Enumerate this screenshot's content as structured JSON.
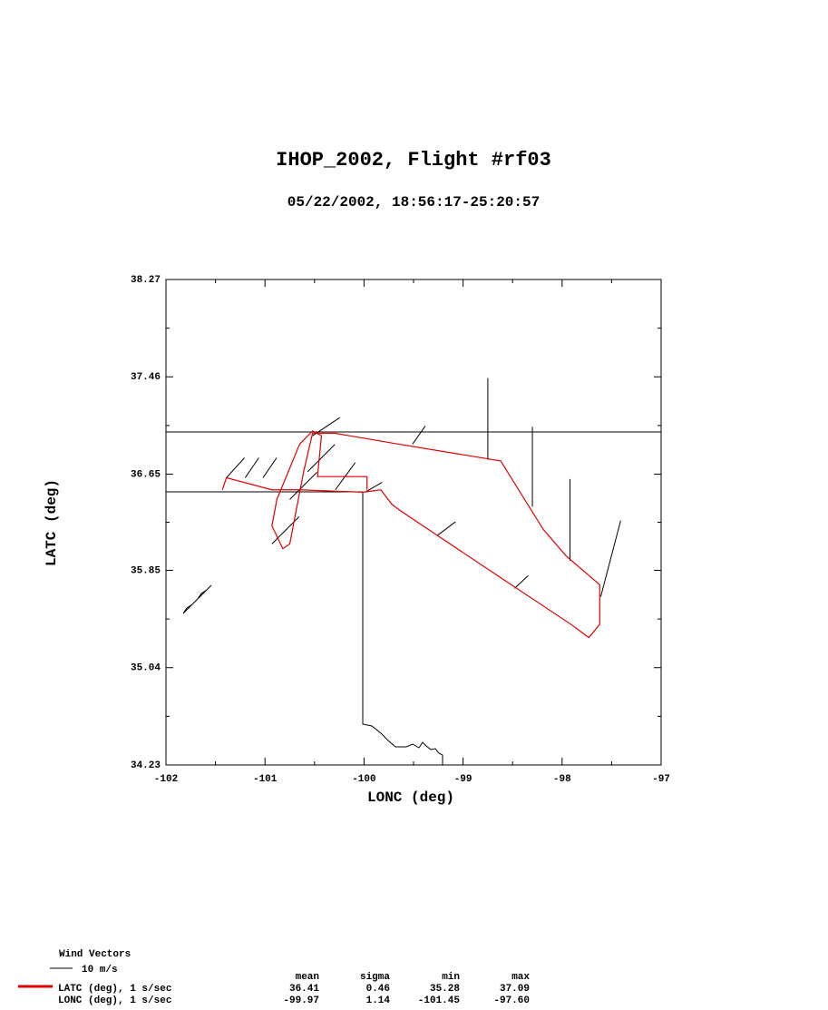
{
  "chart_data": {
    "type": "track",
    "title": "IHOP_2002, Flight #rf03",
    "subtitle": "05/22/2002, 18:56:17-25:20:57",
    "x_label": "LONC (deg)",
    "y_label": "LATC (deg)",
    "xlim": [
      -102,
      -97
    ],
    "xticks": [
      -102,
      -101,
      -100,
      -99,
      -98,
      -97
    ],
    "ylim": [
      34.23,
      38.27
    ],
    "yticks": [
      34.23,
      35.04,
      35.85,
      36.65,
      37.46,
      38.27
    ],
    "series": [
      {
        "color": "#e00000",
        "x": [
          -101.43,
          -101.39,
          -100.93,
          -100.65,
          -100.01,
          -99.83,
          -99.72,
          -99.64,
          -98.75,
          -97.91,
          -97.73,
          -97.62,
          -97.62,
          -97.96,
          -98.19,
          -98.62,
          -99.65,
          -100.29,
          -100.52,
          -100.61,
          -100.75,
          -100.82,
          -100.93,
          -100.88,
          -100.65,
          -100.52,
          -100.43,
          -100.47,
          -99.97,
          -99.97
        ],
        "values": [
          36.52,
          36.62,
          36.52,
          36.52,
          36.5,
          36.52,
          36.4,
          36.35,
          35.86,
          35.4,
          35.29,
          35.4,
          35.73,
          35.97,
          36.19,
          36.76,
          36.9,
          36.99,
          36.99,
          36.67,
          36.07,
          36.03,
          36.22,
          36.44,
          36.9,
          37.01,
          36.97,
          36.63,
          36.63,
          36.52
        ]
      }
    ],
    "wind_vectors": {
      "lon": [
        -98.75,
        -98.3,
        -97.92,
        -97.61,
        -99.51,
        -99.26,
        -98.48,
        -101.2,
        -101.39,
        -101.02,
        -100.29,
        -99.99,
        -100.52,
        -100.93,
        -100.75,
        -100.57
      ],
      "lat": [
        36.77,
        36.38,
        35.93,
        35.63,
        36.9,
        36.14,
        35.7,
        36.62,
        36.62,
        36.62,
        36.52,
        36.5,
        36.97,
        36.07,
        36.44,
        36.67
      ],
      "u": [
        0,
        0,
        0,
        8.8,
        5.6,
        8,
        6,
        6,
        8,
        6,
        8.8,
        7.6,
        12,
        12,
        12,
        12
      ],
      "v": [
        36,
        35.2,
        36,
        33.6,
        8,
        6,
        5.6,
        8.8,
        8.8,
        8.8,
        12,
        4.4,
        8,
        12,
        12,
        12
      ]
    },
    "wind_title": "Wind Vectors",
    "wind_scale": {
      "value": 10,
      "label": "10 m/s"
    },
    "stats": {
      "columns": [
        "mean",
        "sigma",
        "min",
        "max"
      ],
      "rows": [
        {
          "name": "LATC (deg), 1 s/sec",
          "values": [
            36.41,
            0.46,
            35.28,
            37.09
          ]
        },
        {
          "name": "LONC (deg), 1 s/sec",
          "values": [
            -99.97,
            1.14,
            -101.45,
            {
              "value": -97.6,
              "label": "-97.60"
            }
          ]
        }
      ]
    }
  }
}
